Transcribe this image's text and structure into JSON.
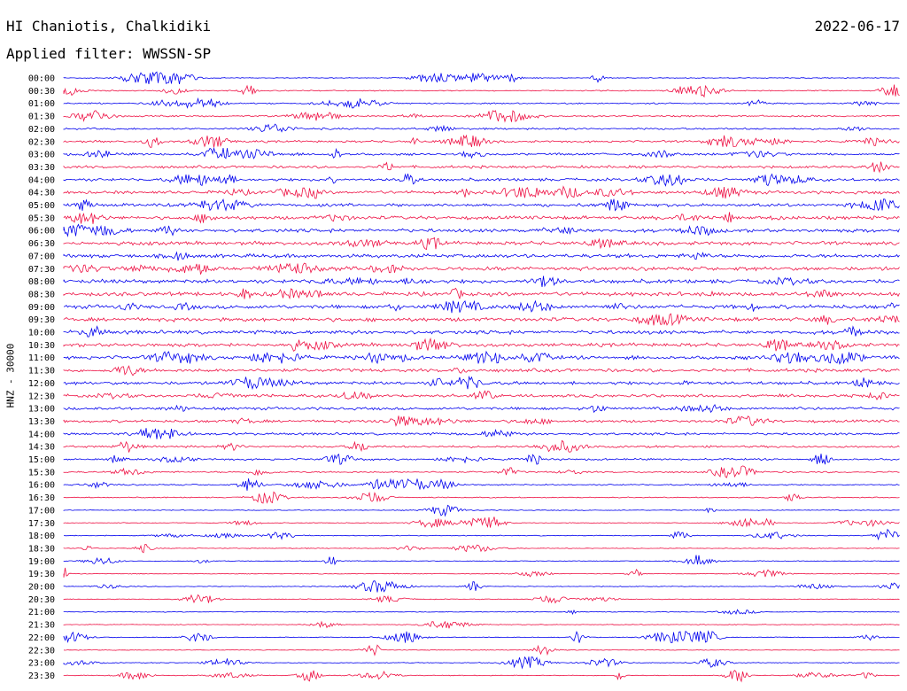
{
  "header": {
    "station": "HI Chaniotis, Chalkidiki",
    "date": "2022-06-17",
    "filter": "Applied filter: WWSSN-SP"
  },
  "chart_data": {
    "type": "line",
    "ylabel": "HNZ - 30000",
    "row_labels": [
      "00:00",
      "00:30",
      "01:00",
      "01:30",
      "02:00",
      "02:30",
      "03:00",
      "03:30",
      "04:00",
      "04:30",
      "05:00",
      "05:30",
      "06:00",
      "06:30",
      "07:00",
      "07:30",
      "08:00",
      "08:30",
      "09:00",
      "09:30",
      "10:00",
      "10:30",
      "11:00",
      "11:30",
      "12:00",
      "12:30",
      "13:00",
      "13:30",
      "14:00",
      "14:30",
      "15:00",
      "15:30",
      "16:00",
      "16:30",
      "17:00",
      "17:30",
      "18:00",
      "18:30",
      "19:00",
      "19:30",
      "20:00",
      "20:30",
      "21:00",
      "21:30",
      "22:00",
      "22:30",
      "23:00",
      "23:30"
    ],
    "series_colors": [
      "#0000ee",
      "#ee1144"
    ],
    "color_pattern": "alternating rows",
    "grid": false
  }
}
